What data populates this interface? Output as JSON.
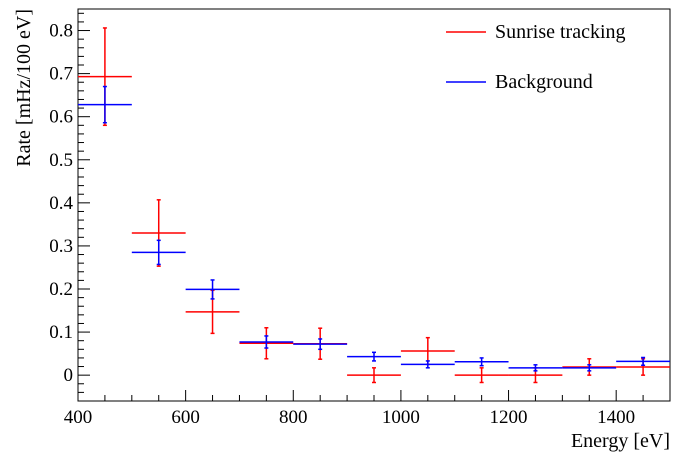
{
  "chart_data": {
    "type": "scatter",
    "xlabel": "Energy [eV]",
    "ylabel": "Rate [mHz/100 eV]",
    "xlim": [
      400,
      1500
    ],
    "ylim": [
      -0.06,
      0.85
    ],
    "x_ticks": [
      400,
      600,
      800,
      1000,
      1200,
      1400
    ],
    "x_tick_labels": [
      "400",
      "600",
      "800",
      "1000",
      "1200",
      "1400"
    ],
    "y_ticks": [
      0,
      0.1,
      0.2,
      0.3,
      0.4,
      0.5,
      0.6,
      0.7,
      0.8
    ],
    "y_tick_labels": [
      "0",
      "0.1",
      "0.2",
      "0.3",
      "0.4",
      "0.5",
      "0.6",
      "0.7",
      "0.8"
    ],
    "grid": false,
    "legend_position": "top-right",
    "series": [
      {
        "name": "Sunrise tracking",
        "color": "#ff0000",
        "x": [
          450,
          550,
          650,
          750,
          850,
          950,
          1050,
          1150,
          1250,
          1350,
          1450
        ],
        "x_halfwidth": 50,
        "y": [
          0.693,
          0.33,
          0.147,
          0.074,
          0.073,
          0.0,
          0.056,
          0.0,
          0.0,
          0.019,
          0.019
        ],
        "y_err": [
          0.113,
          0.077,
          0.05,
          0.036,
          0.036,
          0.017,
          0.031,
          0.017,
          0.017,
          0.019,
          0.019
        ]
      },
      {
        "name": "Background",
        "color": "#0000ff",
        "x": [
          450,
          550,
          650,
          750,
          850,
          950,
          1050,
          1150,
          1250,
          1350,
          1450
        ],
        "x_halfwidth": 50,
        "y": [
          0.628,
          0.285,
          0.199,
          0.077,
          0.072,
          0.043,
          0.025,
          0.031,
          0.017,
          0.017,
          0.032
        ],
        "y_err": [
          0.042,
          0.028,
          0.022,
          0.014,
          0.012,
          0.01,
          0.008,
          0.009,
          0.007,
          0.007,
          0.009
        ]
      }
    ]
  }
}
